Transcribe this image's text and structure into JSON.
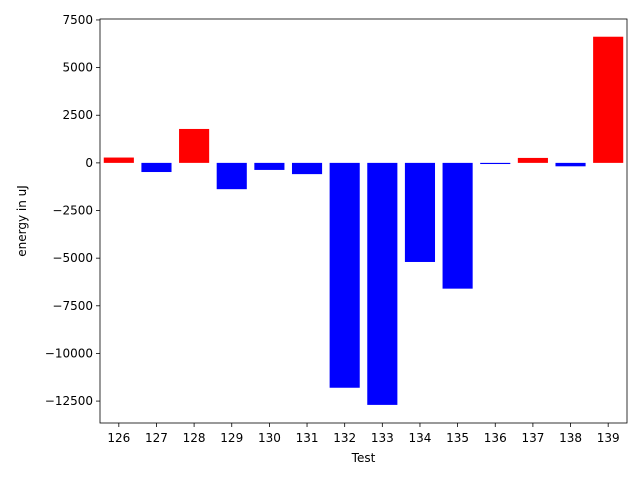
{
  "chart_data": {
    "type": "bar",
    "xlabel": "Test",
    "ylabel": "energy in uJ",
    "categories": [
      "126",
      "127",
      "128",
      "129",
      "130",
      "131",
      "132",
      "133",
      "134",
      "135",
      "136",
      "137",
      "138",
      "139"
    ],
    "values": [
      280,
      -480,
      1780,
      -1380,
      -370,
      -590,
      -11800,
      -12700,
      -5200,
      -6600,
      -60,
      260,
      -180,
      6620
    ],
    "colors": [
      "#ff0000",
      "#0000ff",
      "#ff0000",
      "#0000ff",
      "#0000ff",
      "#0000ff",
      "#0000ff",
      "#0000ff",
      "#0000ff",
      "#0000ff",
      "#0000ff",
      "#ff0000",
      "#0000ff",
      "#ff0000"
    ],
    "ylim": [
      -13650,
      7550
    ],
    "yticks": [
      -12500,
      -10000,
      -7500,
      -5000,
      -2500,
      0,
      2500,
      5000,
      7500
    ],
    "ytick_labels": [
      "−12500",
      "−10000",
      "−7500",
      "−5000",
      "−2500",
      "0",
      "2500",
      "5000",
      "7500"
    ],
    "grid": false,
    "legend": "none"
  }
}
